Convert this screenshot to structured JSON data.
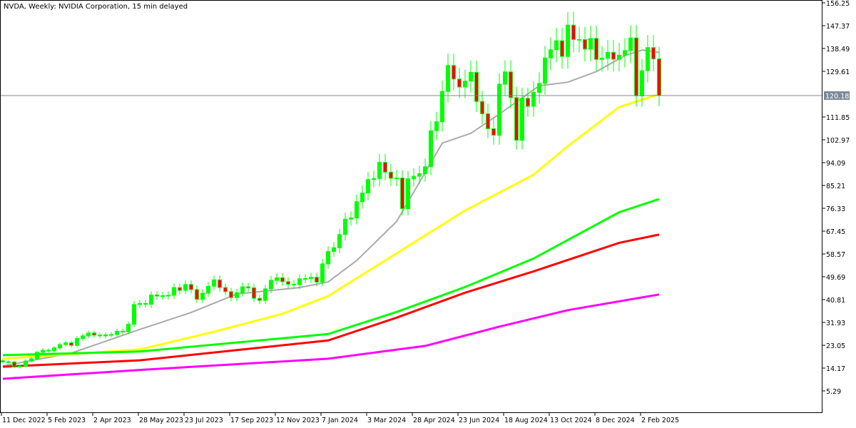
{
  "header": {
    "title": "NVDA, Weekly:  NVIDIA Corporation, 15 min delayed"
  },
  "colors": {
    "bull": "#00ff00",
    "bear": "#ff0000",
    "wick": "#00ff00",
    "price_line": "#7b8a99",
    "ma_gray": "#a9a9a9",
    "ma_yellow": "#ffff00",
    "ma_green": "#00ff00",
    "ma_red": "#ff0000",
    "ma_magenta": "#ff00ff"
  },
  "chart_data": {
    "type": "candlestick",
    "title": "NVDA, Weekly",
    "ylim": [
      5.29,
      156.25
    ],
    "y_ticks": [
      "156.25",
      "147.37",
      "138.49",
      "129.61",
      "111.85",
      "102.97",
      "94.09",
      "85.21",
      "76.33",
      "67.45",
      "58.57",
      "49.69",
      "40.81",
      "31.93",
      "23.05",
      "14.17",
      "5.29"
    ],
    "y_tick_values": [
      156.25,
      147.37,
      138.49,
      129.61,
      111.85,
      102.97,
      94.09,
      85.21,
      76.33,
      67.45,
      58.57,
      49.69,
      40.81,
      31.93,
      23.05,
      14.17,
      5.29
    ],
    "x_ticks": [
      "11 Dec 2022",
      "5 Feb 2023",
      "2 Apr 2023",
      "28 May 2023",
      "23 Jul 2023",
      "17 Sep 2023",
      "12 Nov 2023",
      "7 Jan 2024",
      "3 Mar 2024",
      "28 Apr 2024",
      "23 Jun 2024",
      "18 Aug 2024",
      "13 Oct 2024",
      "8 Dec 2024",
      "2 Feb 2025"
    ],
    "x_tick_every_weeks": 8,
    "current_price": 120.18,
    "current_price_label": "120.18",
    "first_open": 17.0,
    "close": [
      16.6,
      16.5,
      14.6,
      14.9,
      16.9,
      17.8,
      20.3,
      21.1,
      21.0,
      22.0,
      23.3,
      24.0,
      23.0,
      25.7,
      26.7,
      27.8,
      27.0,
      26.7,
      27.1,
      27.2,
      28.5,
      28.3,
      31.2,
      38.9,
      39.3,
      39.0,
      42.6,
      42.2,
      42.3,
      42.5,
      45.5,
      44.4,
      46.7,
      44.7,
      40.9,
      43.3,
      46.0,
      48.5,
      45.5,
      43.9,
      41.6,
      43.5,
      45.8,
      45.4,
      41.3,
      40.5,
      45.0,
      48.3,
      49.3,
      47.8,
      46.8,
      46.6,
      48.9,
      49.0,
      49.5,
      47.6,
      54.7,
      59.5,
      61.0,
      66.1,
      72.1,
      72.6,
      78.9,
      82.3,
      87.5,
      87.9,
      94.2,
      90.4,
      88.0,
      88.1,
      76.2,
      87.8,
      88.8,
      89.8,
      92.5,
      106.5,
      110.0,
      121.8,
      131.9,
      126.6,
      123.5,
      125.8,
      129.2,
      117.9,
      113.1,
      107.3,
      104.75,
      124.6,
      129.4,
      119.4,
      102.8,
      119.1,
      116.0,
      121.4,
      124.9,
      134.8,
      138.0,
      141.5,
      135.4,
      147.6,
      141.98,
      141.95,
      138.25,
      142.4,
      134.25,
      134.7,
      137.0,
      134.3,
      135.9,
      137.7,
      142.6,
      120.07,
      129.84,
      138.85,
      134.43,
      120.18
    ],
    "moving_averages": [
      {
        "name": "ma-gray",
        "color": "#a9a9a9",
        "points": [
          [
            0,
            15
          ],
          [
            12,
            20
          ],
          [
            24,
            29.2
          ],
          [
            33,
            35.8
          ],
          [
            41,
            43
          ],
          [
            52,
            45.5
          ],
          [
            57,
            47.7
          ],
          [
            62,
            56
          ],
          [
            69,
            71.2
          ],
          [
            77,
            101.7
          ],
          [
            82,
            105.5
          ],
          [
            87,
            113
          ],
          [
            94,
            124
          ],
          [
            99,
            125.4
          ],
          [
            104,
            129.5
          ],
          [
            109,
            135.7
          ],
          [
            112,
            137.9
          ],
          [
            115,
            137
          ]
        ]
      },
      {
        "name": "ma-yellow",
        "color": "#ffff00",
        "points": [
          [
            0,
            17.8
          ],
          [
            24,
            21.4
          ],
          [
            37,
            28.3
          ],
          [
            49,
            35.3
          ],
          [
            57,
            42.2
          ],
          [
            69,
            58.8
          ],
          [
            81,
            75.5
          ],
          [
            93,
            89.4
          ],
          [
            99,
            100.5
          ],
          [
            108,
            115.7
          ],
          [
            115,
            120.7
          ]
        ]
      },
      {
        "name": "ma-green",
        "color": "#00ff00",
        "points": [
          [
            0,
            19.2
          ],
          [
            24,
            20.6
          ],
          [
            57,
            27.4
          ],
          [
            69,
            36
          ],
          [
            81,
            45.7
          ],
          [
            93,
            56.8
          ],
          [
            108,
            74.8
          ],
          [
            115,
            79.9
          ]
        ]
      },
      {
        "name": "ma-red",
        "color": "#ff0000",
        "points": [
          [
            0,
            14.7
          ],
          [
            24,
            17.2
          ],
          [
            57,
            24.9
          ],
          [
            69,
            33.8
          ],
          [
            81,
            43.5
          ],
          [
            93,
            51.8
          ],
          [
            108,
            62.9
          ],
          [
            115,
            66.1
          ]
        ]
      },
      {
        "name": "ma-magenta",
        "color": "#ff00ff",
        "points": [
          [
            0,
            10
          ],
          [
            25,
            13.6
          ],
          [
            57,
            17.8
          ],
          [
            74,
            22.8
          ],
          [
            87,
            30.3
          ],
          [
            99,
            36.7
          ],
          [
            115,
            42.8
          ]
        ]
      }
    ]
  }
}
